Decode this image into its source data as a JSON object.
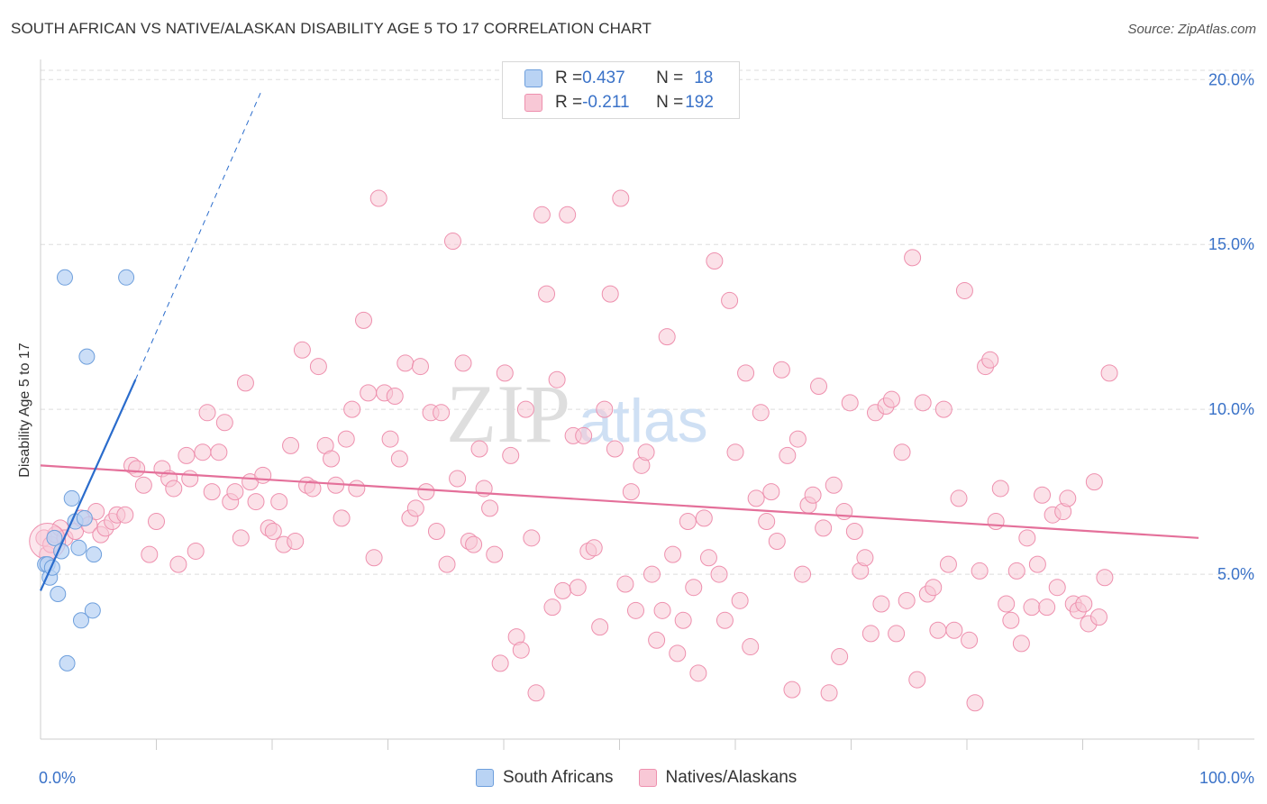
{
  "title": "SOUTH AFRICAN VS NATIVE/ALASKAN DISABILITY AGE 5 TO 17 CORRELATION CHART",
  "source": "Source: ZipAtlas.com",
  "watermark": {
    "part1": "ZIP",
    "part2": "atlas"
  },
  "legend": {
    "rows": [
      {
        "r_label": "R = ",
        "r_value": "0.437",
        "n_label": "N = ",
        "n_value": "18"
      },
      {
        "r_label": "R = ",
        "r_value": "-0.211",
        "n_label": "N = ",
        "n_value": "192"
      }
    ]
  },
  "bottom_legend": {
    "series1": "South Africans",
    "series2": "Natives/Alaskans"
  },
  "colors": {
    "blue_fill": "#b9d3f4",
    "blue_stroke": "#6e9fdc",
    "blue_line": "#2a6ccc",
    "pink_fill": "#f8c8d6",
    "pink_stroke": "#ee90ae",
    "pink_line": "#e4709a",
    "axis_value": "#3a72c8",
    "grid": "#dddddd"
  },
  "chart_data": {
    "type": "scatter",
    "title": "SOUTH AFRICAN VS NATIVE/ALASKAN DISABILITY AGE 5 TO 17 CORRELATION CHART",
    "xlabel": "",
    "ylabel": "Disability Age 5 to 17",
    "xlim": [
      0,
      100
    ],
    "ylim": [
      0,
      20.5
    ],
    "x_tick_labels": [
      "0.0%",
      "100.0%"
    ],
    "y_ticks": [
      5,
      10,
      15,
      20
    ],
    "y_tick_labels": [
      "5.0%",
      "10.0%",
      "15.0%",
      "20.0%"
    ],
    "grid": true,
    "legend_position": "top-center",
    "series": [
      {
        "name": "South Africans",
        "r": 0.437,
        "n": 18,
        "trend": {
          "x0": 0,
          "y0": 4.5,
          "x1": 8.2,
          "y1": 10.9,
          "dash_to_x": 19,
          "dash_to_y": 19.6
        },
        "points": [
          [
            0.4,
            5.3
          ],
          [
            0.6,
            5.3
          ],
          [
            0.8,
            4.9
          ],
          [
            1.0,
            5.2
          ],
          [
            1.2,
            6.1
          ],
          [
            1.5,
            4.4
          ],
          [
            1.8,
            5.7
          ],
          [
            2.3,
            2.3
          ],
          [
            2.7,
            7.3
          ],
          [
            3.0,
            6.6
          ],
          [
            3.3,
            5.8
          ],
          [
            3.5,
            3.6
          ],
          [
            3.8,
            6.7
          ],
          [
            4.0,
            11.6
          ],
          [
            4.5,
            3.9
          ],
          [
            4.6,
            5.6
          ],
          [
            2.1,
            14.0
          ],
          [
            7.4,
            14.0
          ]
        ]
      },
      {
        "name": "Natives/Alaskans",
        "r": -0.211,
        "n": 192,
        "trend": {
          "x0": 0,
          "y0": 8.3,
          "x1": 100,
          "y1": 6.1
        },
        "points": [
          [
            0.3,
            6.1
          ],
          [
            0.6,
            5.6
          ],
          [
            0.9,
            5.9
          ],
          [
            1.3,
            6.2
          ],
          [
            1.7,
            6.4
          ],
          [
            2.1,
            6.1
          ],
          [
            3.0,
            6.3
          ],
          [
            3.5,
            6.7
          ],
          [
            4.2,
            6.5
          ],
          [
            4.8,
            6.9
          ],
          [
            5.2,
            6.2
          ],
          [
            5.6,
            6.4
          ],
          [
            6.2,
            6.6
          ],
          [
            6.6,
            6.8
          ],
          [
            7.3,
            6.8
          ],
          [
            7.9,
            8.3
          ],
          [
            8.3,
            8.2
          ],
          [
            8.9,
            7.7
          ],
          [
            9.4,
            5.6
          ],
          [
            10.0,
            6.6
          ],
          [
            10.5,
            8.2
          ],
          [
            11.1,
            7.9
          ],
          [
            11.5,
            7.6
          ],
          [
            11.9,
            5.3
          ],
          [
            12.6,
            8.6
          ],
          [
            12.9,
            7.9
          ],
          [
            13.4,
            5.7
          ],
          [
            14.0,
            8.7
          ],
          [
            14.4,
            9.9
          ],
          [
            14.8,
            7.5
          ],
          [
            15.4,
            8.7
          ],
          [
            15.9,
            9.6
          ],
          [
            16.4,
            7.2
          ],
          [
            16.8,
            7.5
          ],
          [
            17.3,
            6.1
          ],
          [
            17.7,
            10.8
          ],
          [
            18.1,
            7.8
          ],
          [
            18.6,
            7.2
          ],
          [
            19.2,
            8.0
          ],
          [
            19.7,
            6.4
          ],
          [
            20.1,
            6.3
          ],
          [
            20.6,
            7.2
          ],
          [
            21.0,
            5.9
          ],
          [
            21.6,
            8.9
          ],
          [
            22.0,
            6.0
          ],
          [
            22.6,
            11.8
          ],
          [
            23.0,
            7.7
          ],
          [
            23.5,
            7.6
          ],
          [
            24.0,
            11.3
          ],
          [
            24.6,
            8.9
          ],
          [
            25.1,
            8.5
          ],
          [
            25.5,
            7.7
          ],
          [
            26.0,
            6.7
          ],
          [
            26.4,
            9.1
          ],
          [
            26.9,
            10.0
          ],
          [
            27.3,
            7.6
          ],
          [
            27.9,
            12.7
          ],
          [
            28.3,
            10.5
          ],
          [
            28.8,
            5.5
          ],
          [
            29.2,
            16.4
          ],
          [
            29.7,
            10.5
          ],
          [
            30.2,
            9.1
          ],
          [
            30.6,
            10.4
          ],
          [
            31.0,
            8.5
          ],
          [
            31.5,
            11.4
          ],
          [
            31.9,
            6.7
          ],
          [
            32.4,
            7.0
          ],
          [
            32.8,
            11.3
          ],
          [
            33.3,
            7.5
          ],
          [
            33.7,
            9.9
          ],
          [
            34.2,
            6.3
          ],
          [
            34.6,
            9.9
          ],
          [
            35.1,
            5.3
          ],
          [
            35.6,
            15.1
          ],
          [
            36.0,
            7.9
          ],
          [
            36.5,
            11.4
          ],
          [
            37.0,
            6.0
          ],
          [
            37.4,
            5.9
          ],
          [
            37.9,
            8.8
          ],
          [
            38.3,
            7.6
          ],
          [
            38.8,
            7.0
          ],
          [
            39.2,
            5.6
          ],
          [
            39.7,
            2.3
          ],
          [
            40.1,
            11.1
          ],
          [
            40.6,
            8.6
          ],
          [
            41.1,
            3.1
          ],
          [
            41.5,
            2.7
          ],
          [
            41.9,
            10.0
          ],
          [
            42.4,
            6.1
          ],
          [
            42.8,
            1.4
          ],
          [
            43.3,
            15.9
          ],
          [
            43.7,
            13.5
          ],
          [
            44.2,
            4.0
          ],
          [
            44.6,
            10.9
          ],
          [
            45.1,
            4.5
          ],
          [
            45.5,
            15.9
          ],
          [
            46.0,
            9.2
          ],
          [
            46.4,
            4.6
          ],
          [
            46.9,
            9.2
          ],
          [
            47.3,
            5.7
          ],
          [
            47.8,
            5.8
          ],
          [
            48.3,
            3.4
          ],
          [
            48.7,
            10.0
          ],
          [
            49.2,
            13.5
          ],
          [
            49.6,
            8.8
          ],
          [
            50.1,
            16.4
          ],
          [
            50.5,
            4.7
          ],
          [
            51.0,
            7.5
          ],
          [
            51.4,
            3.9
          ],
          [
            51.9,
            8.3
          ],
          [
            52.3,
            8.7
          ],
          [
            52.8,
            5.0
          ],
          [
            53.2,
            3.0
          ],
          [
            53.7,
            3.9
          ],
          [
            54.1,
            12.2
          ],
          [
            54.6,
            5.6
          ],
          [
            55.0,
            2.6
          ],
          [
            55.5,
            3.6
          ],
          [
            55.9,
            6.6
          ],
          [
            56.4,
            4.6
          ],
          [
            56.8,
            2.0
          ],
          [
            57.3,
            6.7
          ],
          [
            57.7,
            5.5
          ],
          [
            58.2,
            14.5
          ],
          [
            58.6,
            5.0
          ],
          [
            59.1,
            3.6
          ],
          [
            59.5,
            13.3
          ],
          [
            60.0,
            8.7
          ],
          [
            60.4,
            4.2
          ],
          [
            60.9,
            11.1
          ],
          [
            61.3,
            2.8
          ],
          [
            61.8,
            7.3
          ],
          [
            62.2,
            9.9
          ],
          [
            62.7,
            6.6
          ],
          [
            63.1,
            7.5
          ],
          [
            63.6,
            6.0
          ],
          [
            64.0,
            11.2
          ],
          [
            64.5,
            8.6
          ],
          [
            64.9,
            1.5
          ],
          [
            65.4,
            9.1
          ],
          [
            65.8,
            5.0
          ],
          [
            66.3,
            7.1
          ],
          [
            66.7,
            7.4
          ],
          [
            67.2,
            10.7
          ],
          [
            67.6,
            6.4
          ],
          [
            68.1,
            1.4
          ],
          [
            68.5,
            7.7
          ],
          [
            69.0,
            2.5
          ],
          [
            69.4,
            6.9
          ],
          [
            69.9,
            10.2
          ],
          [
            70.3,
            6.3
          ],
          [
            70.8,
            5.1
          ],
          [
            71.2,
            5.5
          ],
          [
            71.7,
            3.2
          ],
          [
            72.1,
            9.9
          ],
          [
            72.6,
            4.1
          ],
          [
            73.0,
            10.1
          ],
          [
            73.5,
            10.3
          ],
          [
            73.9,
            3.2
          ],
          [
            74.4,
            8.7
          ],
          [
            74.8,
            4.2
          ],
          [
            75.3,
            14.6
          ],
          [
            75.7,
            1.8
          ],
          [
            76.2,
            10.2
          ],
          [
            76.6,
            4.4
          ],
          [
            77.1,
            4.6
          ],
          [
            77.5,
            3.3
          ],
          [
            78.0,
            10.0
          ],
          [
            78.4,
            5.3
          ],
          [
            78.9,
            3.3
          ],
          [
            79.3,
            7.3
          ],
          [
            79.8,
            13.6
          ],
          [
            80.2,
            3.0
          ],
          [
            80.7,
            1.1
          ],
          [
            81.1,
            5.1
          ],
          [
            81.6,
            11.3
          ],
          [
            82.0,
            11.5
          ],
          [
            82.5,
            6.6
          ],
          [
            82.9,
            7.6
          ],
          [
            83.4,
            4.1
          ],
          [
            83.8,
            3.6
          ],
          [
            84.3,
            5.1
          ],
          [
            84.7,
            2.9
          ],
          [
            85.2,
            6.1
          ],
          [
            85.6,
            4.0
          ],
          [
            86.1,
            5.3
          ],
          [
            86.5,
            7.4
          ],
          [
            86.9,
            4.0
          ],
          [
            87.4,
            6.8
          ],
          [
            87.8,
            4.6
          ],
          [
            88.3,
            6.9
          ],
          [
            88.7,
            7.3
          ],
          [
            89.2,
            4.1
          ],
          [
            89.6,
            3.9
          ],
          [
            90.1,
            4.1
          ],
          [
            90.5,
            3.5
          ],
          [
            91.0,
            7.8
          ],
          [
            91.4,
            3.7
          ],
          [
            91.9,
            4.9
          ],
          [
            92.3,
            11.1
          ]
        ]
      }
    ]
  }
}
